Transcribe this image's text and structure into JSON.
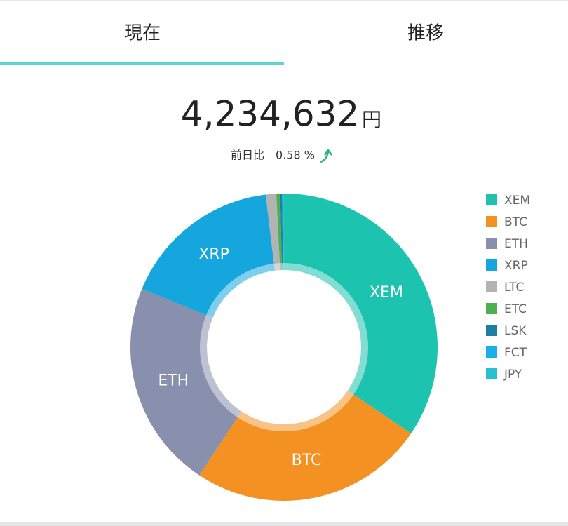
{
  "tabs": [
    "現在",
    "推移"
  ],
  "summary": {
    "total": "4,234,632",
    "currency": "円",
    "change_label": "前日比",
    "change": "0.58 %"
  },
  "chart_data": {
    "type": "pie",
    "donut": true,
    "categories": [
      "XEM",
      "BTC",
      "ETH",
      "XRP",
      "LTC",
      "ETC",
      "LSK",
      "FCT",
      "JPY"
    ],
    "values": [
      34.5,
      24.8,
      21.9,
      16.9,
      1.1,
      0.4,
      0.2,
      0.1,
      0.1
    ],
    "colors": [
      "#1cc3ae",
      "#f39222",
      "#8890ad",
      "#15a6de",
      "#b3b3b3",
      "#4caf50",
      "#1e7fa6",
      "#19b0e6",
      "#27c1cf"
    ],
    "legend": "right"
  }
}
